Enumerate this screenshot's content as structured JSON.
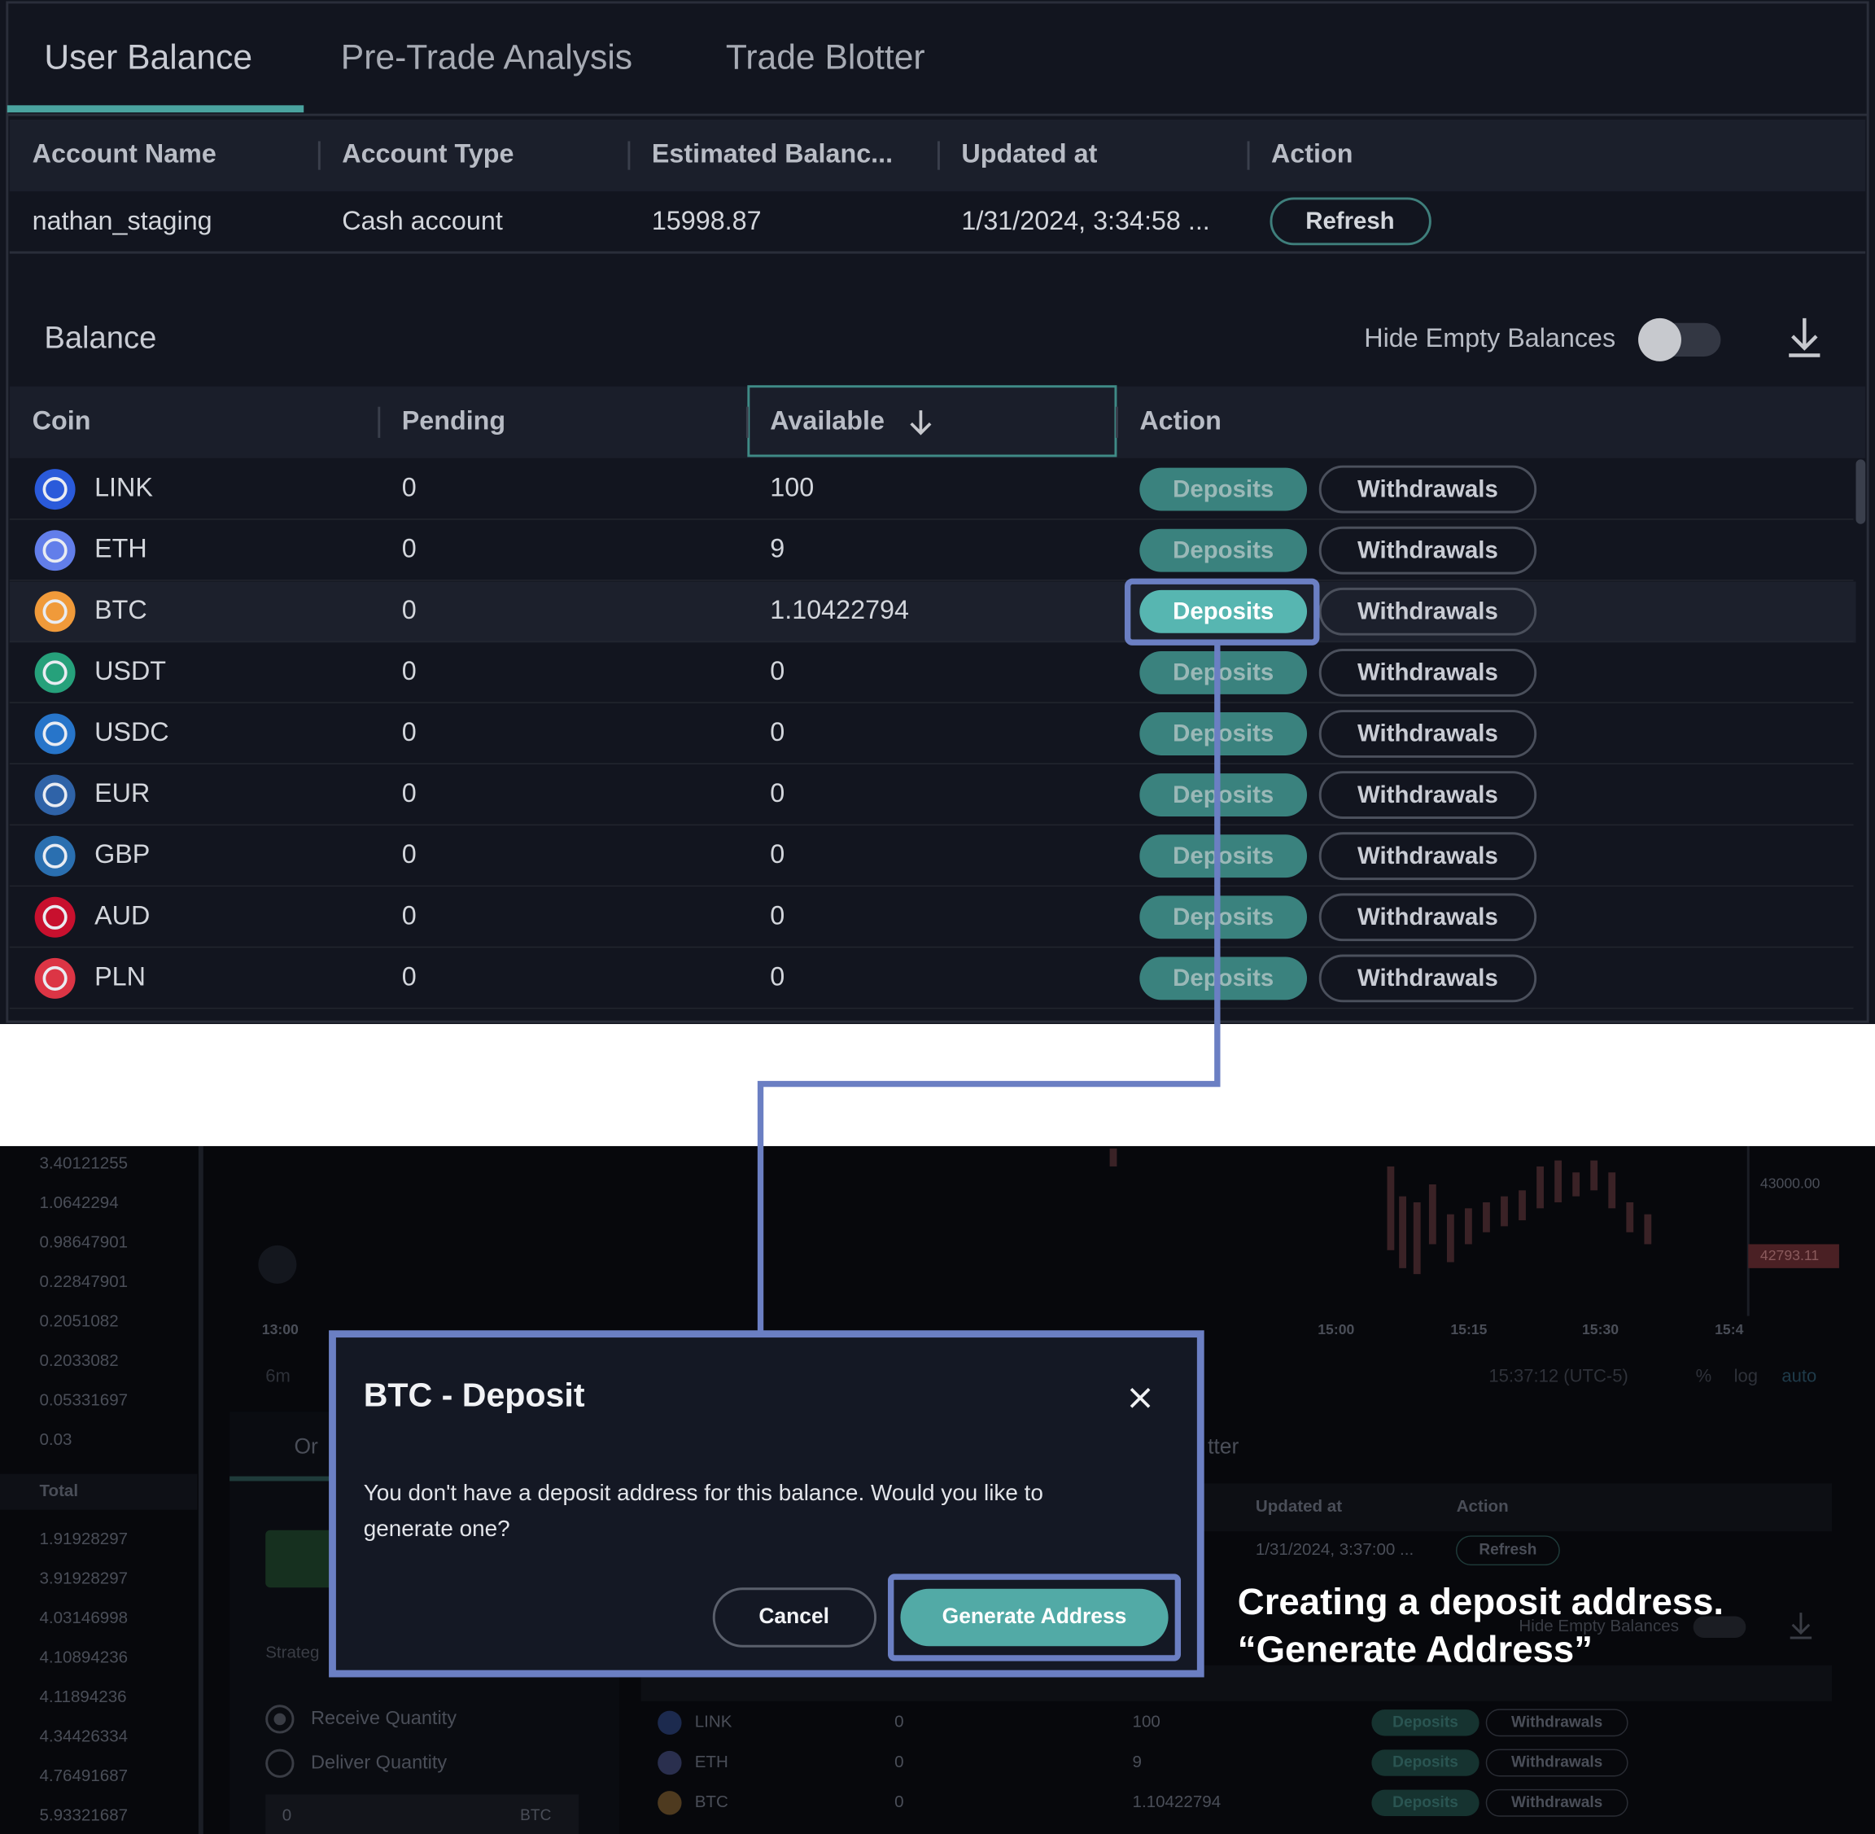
{
  "tabs": [
    "User Balance",
    "Pre-Trade Analysis",
    "Trade Blotter"
  ],
  "account_table": {
    "headers": [
      "Account Name",
      "Account Type",
      "Estimated Balanc...",
      "Updated at",
      "Action"
    ],
    "row": [
      "nathan_staging",
      "Cash account",
      "15998.87",
      "1/31/2024, 3:34:58 ...",
      "Refresh"
    ]
  },
  "balance": {
    "title": "Balance",
    "toggle_label": "Hide Empty Balances",
    "headers": [
      "Coin",
      "Pending",
      "Available",
      "Action"
    ],
    "deposit": "Deposits",
    "withdraw": "Withdrawals",
    "rows": [
      {
        "coin": "LINK",
        "pending": "0",
        "available": "100"
      },
      {
        "coin": "ETH",
        "pending": "0",
        "available": "9"
      },
      {
        "coin": "BTC",
        "pending": "0",
        "available": "1.10422794"
      },
      {
        "coin": "USDT",
        "pending": "0",
        "available": "0"
      },
      {
        "coin": "USDC",
        "pending": "0",
        "available": "0"
      },
      {
        "coin": "EUR",
        "pending": "0",
        "available": "0"
      },
      {
        "coin": "GBP",
        "pending": "0",
        "available": "0"
      },
      {
        "coin": "AUD",
        "pending": "0",
        "available": "0"
      },
      {
        "coin": "PLN",
        "pending": "0",
        "available": "0"
      }
    ]
  },
  "background": {
    "left_values": [
      "3.40121255",
      "1.0642294",
      "0.98647901",
      "0.22847901",
      "0.2051082",
      "0.2033082",
      "0.05331697",
      "0.03"
    ],
    "total_label": "Total",
    "total_values": [
      "1.91928297",
      "3.91928297",
      "4.03146998",
      "4.10894236",
      "4.11894236",
      "4.34426334",
      "4.76491687",
      "5.93321687"
    ],
    "price_labels": [
      "43000.00",
      "42793.11"
    ],
    "time_labels": [
      "13:00",
      "15:00",
      "15:15",
      "15:30",
      "15:4"
    ],
    "timeframe": "6m",
    "timestamp": "15:37:12 (UTC-5)",
    "chart_options": [
      "%",
      "log",
      "auto"
    ],
    "tab_fragments": [
      "Or",
      "tter"
    ],
    "strategy": "Strateg",
    "radio_options": [
      "Receive Quantity",
      "Deliver Quantity"
    ],
    "input_value": "0",
    "input_unit": "BTC",
    "mini_headers": [
      "Updated at",
      "Action"
    ],
    "mini_row": [
      "1/31/2024, 3:37:00 ...",
      "Refresh"
    ],
    "mini_toggle": "Hide Empty Balances",
    "mini_rows": [
      {
        "coin": "LINK",
        "pending": "0",
        "available": "100"
      },
      {
        "coin": "ETH",
        "pending": "0",
        "available": "9"
      },
      {
        "coin": "BTC",
        "pending": "0",
        "available": "1.10422794"
      }
    ],
    "mini_deposit": "Deposits",
    "mini_withdraw": "Withdrawals"
  },
  "modal": {
    "title": "BTC - Deposit",
    "message": [
      "You don't have a deposit address for this balance. Would you like to",
      "generate one?"
    ],
    "cancel": "Cancel",
    "confirm": "Generate Address"
  },
  "annotation": [
    "Creating a deposit address.",
    "“Generate Address”"
  ]
}
